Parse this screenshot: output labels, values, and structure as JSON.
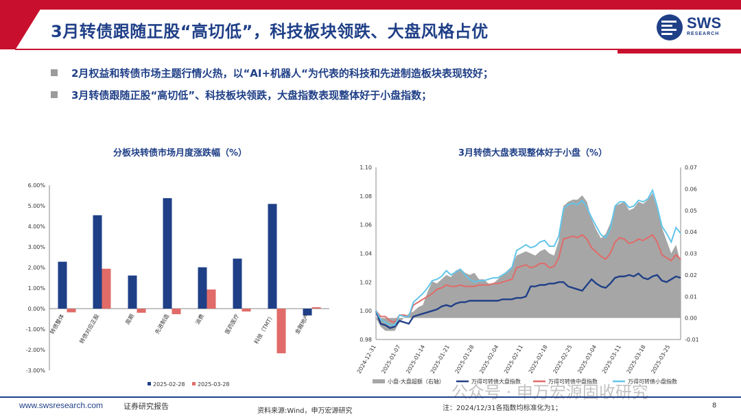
{
  "header": {
    "title": "3月转债跟随正股“高切低”，科技板块领跌、大盘风格占优",
    "logo_text": "SWS",
    "logo_sub": "RESEARCH"
  },
  "bullets": [
    "2月权益和转债市场主题行情火热，以“AI+机器人“为代表的科技和先进制造板块表现较好；",
    "3月转债跟随正股“高切低”、科技板块领跌，大盘指数表现整体好于小盘指数；"
  ],
  "colors": {
    "brand": "#1f3f87",
    "bar1": "#1f3f87",
    "bar2": "#e06b68",
    "area": "#a6a6a6",
    "small_line": "#62c5ea",
    "mid_line": "#e06b68",
    "large_line": "#1f3f87"
  },
  "chart_data": [
    {
      "type": "bar",
      "title": "分板块转债市场月度涨跌幅（%）",
      "categories": [
        "转债整体",
        "转债对应正股",
        "周期",
        "先进制造",
        "消费",
        "医药医疗",
        "科技（TMT）",
        "金融地产"
      ],
      "series": [
        {
          "name": "2025-02-28",
          "values": [
            2.28,
            4.54,
            1.61,
            5.37,
            2.01,
            2.43,
            5.09,
            -0.33
          ]
        },
        {
          "name": "2025-03-28",
          "values": [
            -0.18,
            1.94,
            -0.2,
            -0.27,
            0.93,
            -0.14,
            -2.17,
            0.07
          ]
        }
      ],
      "ylim": [
        -3,
        6
      ],
      "yticks": [
        "-3.00%",
        "-2.00%",
        "-1.00%",
        "0.00%",
        "1.00%",
        "2.00%",
        "3.00%",
        "4.00%",
        "5.00%",
        "6.00%"
      ],
      "legend": "bottom",
      "grid": false
    },
    {
      "type": "line",
      "title": "3月转债大盘表现整体好于小盘（%）",
      "x_ticks": [
        "2024-12-31",
        "2025-01-07",
        "2025-01-14",
        "2025-01-21",
        "2025-01-28",
        "2025-02-04",
        "2025-02-11",
        "2025-02-18",
        "2025-02-25",
        "2025-03-04",
        "2025-03-11",
        "2025-03-18",
        "2025-03-25"
      ],
      "x_start": "2024-12-31",
      "x_end": "2025-03-28",
      "ylim_left": [
        0.98,
        1.1
      ],
      "yticks_left": [
        "0.98",
        "1.00",
        "1.02",
        "1.04",
        "1.06",
        "1.08",
        "1.10"
      ],
      "ylim_right": [
        -0.01,
        0.07
      ],
      "yticks_right": [
        "-0.01",
        "0.00",
        "0.01",
        "0.02",
        "0.03",
        "0.04",
        "0.05",
        "0.06",
        "0.07"
      ],
      "series": [
        {
          "name": "小盘-大盘超额（右轴）",
          "kind": "area",
          "axis": "right",
          "values": [
            0.0,
            -0.004,
            -0.006,
            -0.006,
            -0.006,
            -0.002,
            0.0,
            0.002,
            0.003,
            0.005,
            0.006,
            0.012,
            0.017,
            0.016,
            0.018,
            0.02,
            0.019,
            0.022,
            0.023,
            0.021,
            0.02,
            0.021,
            0.018,
            0.018,
            0.016,
            0.016,
            0.018,
            0.02,
            0.022,
            0.024,
            0.029,
            0.03,
            0.031,
            0.03,
            0.029,
            0.031,
            0.032,
            0.03,
            0.029,
            0.036,
            0.052,
            0.054,
            0.055,
            0.055,
            0.057,
            0.054,
            0.046,
            0.041,
            0.037,
            0.039,
            0.044,
            0.052,
            0.053,
            0.054,
            0.05,
            0.051,
            0.054,
            0.053,
            0.055,
            0.058,
            0.051,
            0.042,
            0.036,
            0.03,
            0.034,
            0.026
          ]
        },
        {
          "name": "万得可转债大盘指数",
          "kind": "line",
          "axis": "left",
          "values": [
            1.0,
            0.991,
            0.99,
            0.988,
            0.989,
            0.993,
            0.992,
            0.991,
            0.996,
            0.997,
            0.998,
            0.999,
            1.0,
            1.001,
            1.003,
            1.004,
            1.003,
            1.005,
            1.006,
            1.006,
            1.007,
            1.007,
            1.007,
            1.007,
            1.007,
            1.007,
            1.007,
            1.008,
            1.008,
            1.008,
            1.009,
            1.009,
            1.01,
            1.017,
            1.017,
            1.018,
            1.018,
            1.019,
            1.019,
            1.02,
            1.02,
            1.017,
            1.016,
            1.015,
            1.014,
            1.018,
            1.022,
            1.019,
            1.017,
            1.016,
            1.019,
            1.023,
            1.024,
            1.024,
            1.025,
            1.024,
            1.026,
            1.023,
            1.022,
            1.024,
            1.025,
            1.021,
            1.02,
            1.022,
            1.024,
            1.023
          ]
        },
        {
          "name": "万得可转债中盘指数",
          "kind": "line",
          "axis": "left",
          "values": [
            1.0,
            0.996,
            0.996,
            0.993,
            0.992,
            0.997,
            0.997,
            0.996,
            1.004,
            1.006,
            1.008,
            1.01,
            1.012,
            1.015,
            1.016,
            1.018,
            1.017,
            1.017,
            1.018,
            1.017,
            1.017,
            1.017,
            1.018,
            1.018,
            1.018,
            1.019,
            1.019,
            1.02,
            1.021,
            1.022,
            1.03,
            1.031,
            1.032,
            1.03,
            1.031,
            1.033,
            1.033,
            1.03,
            1.031,
            1.037,
            1.05,
            1.051,
            1.052,
            1.051,
            1.053,
            1.05,
            1.044,
            1.041,
            1.038,
            1.036,
            1.04,
            1.048,
            1.051,
            1.05,
            1.047,
            1.048,
            1.05,
            1.049,
            1.051,
            1.053,
            1.048,
            1.039,
            1.037,
            1.035,
            1.039,
            1.036
          ]
        },
        {
          "name": "万得可转债小盘指数",
          "kind": "line",
          "axis": "left",
          "values": [
            1.0,
            0.994,
            0.992,
            0.99,
            0.99,
            0.997,
            0.996,
            0.996,
            1.006,
            1.009,
            1.012,
            1.016,
            1.021,
            1.022,
            1.024,
            1.028,
            1.025,
            1.027,
            1.029,
            1.025,
            1.022,
            1.02,
            1.021,
            1.021,
            1.022,
            1.023,
            1.023,
            1.025,
            1.027,
            1.03,
            1.042,
            1.044,
            1.046,
            1.044,
            1.045,
            1.048,
            1.049,
            1.045,
            1.045,
            1.052,
            1.071,
            1.074,
            1.075,
            1.074,
            1.077,
            1.072,
            1.065,
            1.059,
            1.053,
            1.051,
            1.057,
            1.073,
            1.076,
            1.076,
            1.072,
            1.073,
            1.077,
            1.076,
            1.078,
            1.084,
            1.073,
            1.059,
            1.054,
            1.048,
            1.058,
            1.054
          ]
        }
      ],
      "legend": "bottom",
      "grid": false
    }
  ],
  "footer": {
    "url": "www.swsresearch.com",
    "report": "证券研究报告",
    "source": "资料来源:Wind，申万宏源研究",
    "note": "注：2024/12/31各指数均标准化为1；",
    "page": "8",
    "watermark": "公众号 · 申万宏源固收研究"
  }
}
